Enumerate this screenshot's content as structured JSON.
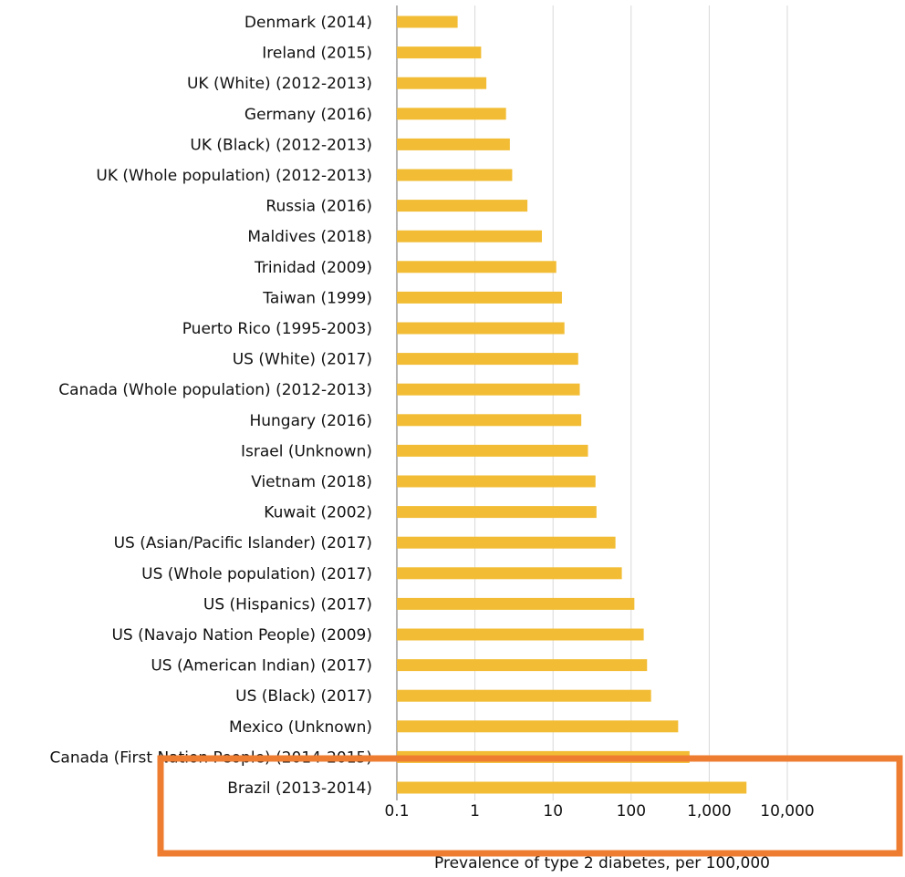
{
  "chart_data": {
    "type": "bar",
    "orientation": "horizontal",
    "x_scale": "log",
    "xlim": [
      0.1,
      10000
    ],
    "xticks": [
      0.1,
      1,
      10,
      100,
      1000,
      10000
    ],
    "xtick_labels": [
      "0.1",
      "1",
      "10",
      "100",
      "1,000",
      "10,000"
    ],
    "xlabel": "Prevalence of type 2 diabetes, per 100,000",
    "grid": "vertical",
    "bar_color": "#f2bd35",
    "grid_color": "#d9d9d9",
    "highlight_color": "#ee7d31",
    "categories": [
      "Denmark (2014)",
      "Ireland (2015)",
      "UK (White) (2012-2013)",
      "Germany (2016)",
      "UK (Black) (2012-2013)",
      "UK (Whole population) (2012-2013)",
      "Russia (2016)",
      "Maldives (2018)",
      "Trinidad (2009)",
      "Taiwan (1999)",
      "Puerto Rico (1995-2003)",
      "US (White) (2017)",
      "Canada (Whole population) (2012-2013)",
      "Hungary (2016)",
      "Israel (Unknown)",
      "Vietnam (2018)",
      "Kuwait (2002)",
      "US (Asian/Pacific Islander) (2017)",
      "US (Whole population) (2017)",
      "US (Hispanics) (2017)",
      "US (Navajo Nation People) (2009)",
      "US (American Indian) (2017)",
      "US (Black) (2017)",
      "Mexico (Unknown)",
      "Canada (First Nation People) (2014-2015)",
      "Brazil (2013-2014)"
    ],
    "values": [
      0.6,
      1.2,
      1.4,
      2.5,
      2.8,
      3.0,
      4.7,
      7.2,
      11,
      13,
      14,
      21,
      22,
      23,
      28,
      35,
      36,
      63,
      76,
      110,
      145,
      160,
      180,
      400,
      560,
      3000
    ]
  }
}
